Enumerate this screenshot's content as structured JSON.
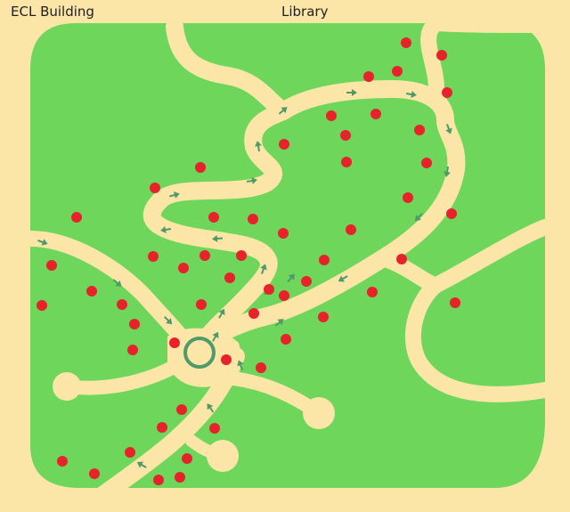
{
  "labels": {
    "left": "ECL Building",
    "right": "Library"
  },
  "colors": {
    "background": "#fbe6a8",
    "grass": "#6fd65c",
    "path": "#fbe6a8",
    "tree": "#e8222a",
    "arrow": "#4f9a69",
    "center_ring": "#4f9a69"
  },
  "counts": {
    "trees": 74,
    "arrows": 24
  }
}
